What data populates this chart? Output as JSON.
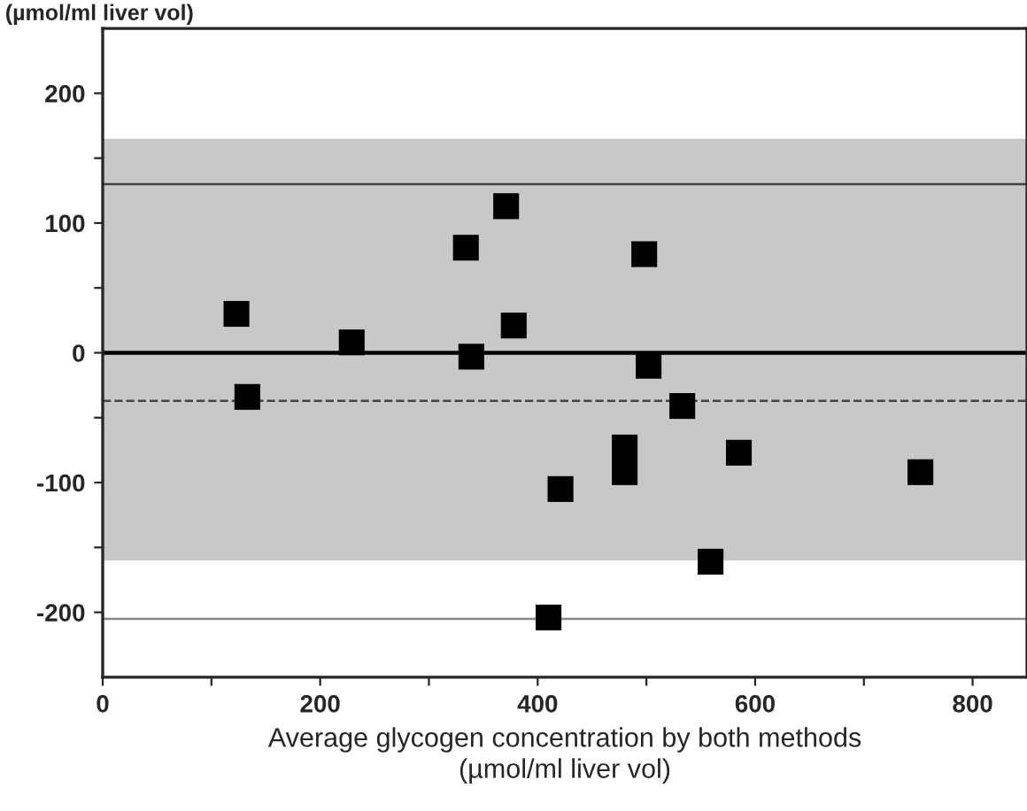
{
  "chart_data": {
    "type": "scatter",
    "ylabel": "(µmol/ml liver vol)",
    "xlabel": "Average glycogen concentration by both methods\n(µmol/ml liver vol)",
    "x": [
      123,
      133,
      229,
      334,
      371,
      339,
      378,
      498,
      502,
      533,
      585,
      480,
      480,
      421,
      559,
      410,
      752
    ],
    "series": [
      {
        "color": "#000000",
        "values": [
          30,
          -34,
          8,
          81,
          113,
          -3,
          21,
          76,
          -10,
          -41,
          -77,
          -73,
          -92,
          -105,
          -161,
          -204,
          -92
        ]
      }
    ],
    "marker": "square",
    "xlim": [
      0,
      850
    ],
    "ylim": [
      -250,
      250
    ],
    "xticks": [
      0,
      {
        "value": 100,
        "label": null
      },
      200,
      {
        "value": 300,
        "label": null
      },
      400,
      {
        "value": 500,
        "label": null
      },
      600,
      {
        "value": 700,
        "label": null
      },
      800
    ],
    "yticks": [
      -200,
      {
        "value": -150,
        "label": null
      },
      -100,
      {
        "value": -50,
        "label": null
      },
      0,
      {
        "value": 50,
        "label": null
      },
      100,
      {
        "value": 150,
        "label": null
      },
      200
    ],
    "bands": [
      {
        "axis": "y",
        "from": -160,
        "to": 165,
        "color": "#c8c8c8"
      }
    ],
    "ref_lines": [
      {
        "axis": "y",
        "value": 130,
        "color": "#444444",
        "line_style": "solid"
      },
      {
        "axis": "y",
        "value": 0,
        "color": "#000000",
        "line_style": "solid"
      },
      {
        "axis": "y",
        "value": -37,
        "color": "#444444",
        "line_style": "dashed"
      },
      {
        "axis": "y",
        "value": -205,
        "color": "#888888",
        "line_style": "solid"
      }
    ],
    "grid": false,
    "legend": false
  }
}
